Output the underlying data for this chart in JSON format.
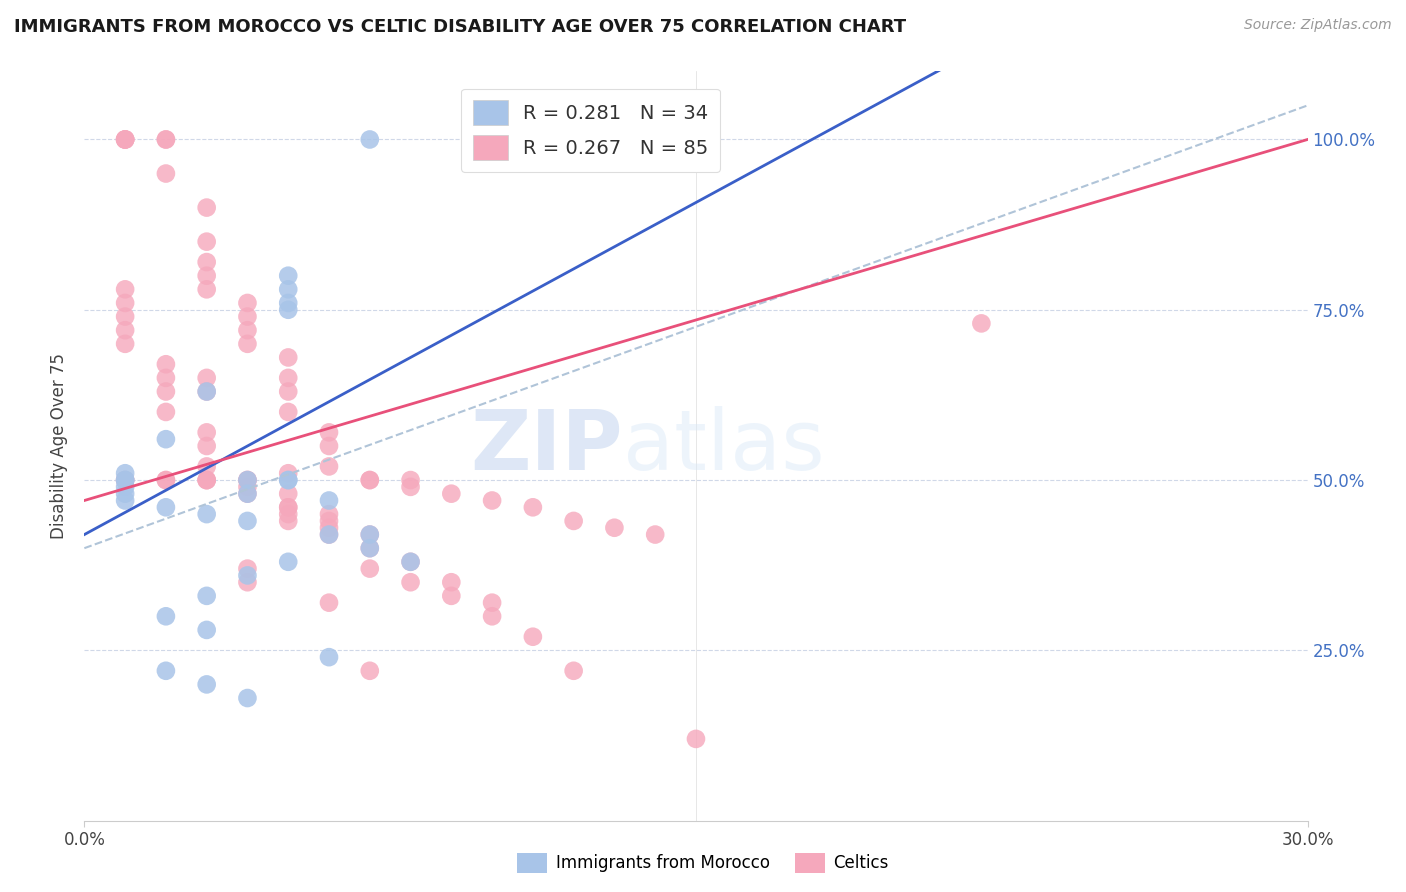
{
  "title": "IMMIGRANTS FROM MOROCCO VS CELTIC DISABILITY AGE OVER 75 CORRELATION CHART",
  "source": "Source: ZipAtlas.com",
  "ylabel": "Disability Age Over 75",
  "blue_color": "#a8c4e8",
  "pink_color": "#f5a8bc",
  "blue_line_color": "#3a5fc8",
  "pink_line_color": "#e8507a",
  "dashed_line_color": "#b0c4d8",
  "watermark_zip": "ZIP",
  "watermark_atlas": "atlas",
  "legend_blue_text": "R = 0.281   N = 34",
  "legend_pink_text": "R = 0.267   N = 85",
  "blue_scatter_x": [
    0.1,
    0.5,
    0.5,
    0.7,
    0.5,
    0.5,
    0.3,
    0.2,
    0.1,
    0.1,
    0.1,
    0.1,
    0.1,
    0.2,
    0.3,
    0.4,
    0.6,
    0.7,
    0.5,
    0.4,
    0.3,
    0.2,
    0.3,
    0.5,
    0.4,
    0.4,
    0.6,
    0.7,
    0.8,
    0.6,
    0.2,
    0.3,
    0.4,
    0.5
  ],
  "blue_scatter_y": [
    0.5,
    0.8,
    0.75,
    1.0,
    0.78,
    0.76,
    0.63,
    0.56,
    0.51,
    0.5,
    0.49,
    0.48,
    0.47,
    0.46,
    0.45,
    0.44,
    0.42,
    0.4,
    0.38,
    0.36,
    0.33,
    0.3,
    0.28,
    0.5,
    0.5,
    0.48,
    0.47,
    0.42,
    0.38,
    0.24,
    0.22,
    0.2,
    0.18,
    0.5
  ],
  "pink_scatter_x": [
    0.1,
    0.1,
    0.1,
    0.1,
    0.2,
    0.2,
    0.2,
    0.3,
    0.3,
    0.3,
    0.3,
    0.3,
    0.4,
    0.4,
    0.4,
    0.4,
    0.5,
    0.5,
    0.5,
    0.5,
    0.6,
    0.6,
    0.6,
    0.7,
    0.7,
    0.8,
    0.8,
    0.9,
    1.0,
    1.1,
    1.2,
    1.3,
    1.4,
    0.1,
    0.1,
    0.1,
    0.1,
    0.1,
    0.2,
    0.2,
    0.2,
    0.2,
    0.3,
    0.3,
    0.3,
    0.4,
    0.4,
    0.5,
    0.5,
    0.6,
    0.6,
    0.7,
    0.8,
    0.9,
    1.0,
    2.2,
    0.1,
    0.1,
    0.2,
    0.2,
    0.3,
    0.3,
    0.3,
    0.4,
    0.4,
    0.5,
    0.5,
    0.5,
    0.6,
    0.6,
    0.7,
    0.7,
    0.8,
    0.9,
    1.0,
    1.1,
    1.2,
    1.5,
    0.3,
    0.3,
    0.4,
    0.4,
    0.5,
    0.6,
    0.7
  ],
  "pink_scatter_y": [
    1.0,
    1.0,
    1.0,
    1.0,
    1.0,
    1.0,
    0.95,
    0.9,
    0.85,
    0.82,
    0.8,
    0.78,
    0.76,
    0.74,
    0.72,
    0.7,
    0.68,
    0.65,
    0.63,
    0.6,
    0.57,
    0.55,
    0.52,
    0.5,
    0.5,
    0.5,
    0.49,
    0.48,
    0.47,
    0.46,
    0.44,
    0.43,
    0.42,
    0.78,
    0.76,
    0.74,
    0.72,
    0.7,
    0.67,
    0.65,
    0.63,
    0.6,
    0.57,
    0.55,
    0.52,
    0.5,
    0.49,
    0.48,
    0.46,
    0.45,
    0.44,
    0.42,
    0.38,
    0.35,
    0.32,
    0.73,
    0.5,
    0.5,
    0.5,
    0.5,
    0.5,
    0.5,
    0.5,
    0.5,
    0.48,
    0.46,
    0.45,
    0.44,
    0.43,
    0.42,
    0.4,
    0.37,
    0.35,
    0.33,
    0.3,
    0.27,
    0.22,
    0.12,
    0.63,
    0.65,
    0.35,
    0.37,
    0.51,
    0.32,
    0.22
  ],
  "blue_line_x0": 0.0,
  "blue_line_y0": 0.42,
  "blue_line_x1": 0.8,
  "blue_line_y1": 0.68,
  "pink_line_x0": 0.0,
  "pink_line_y0": 0.47,
  "pink_line_x1": 3.0,
  "pink_line_y1": 1.0,
  "dash_line_x0": 0.0,
  "dash_line_y0": 0.4,
  "dash_line_x1": 3.0,
  "dash_line_y1": 1.05,
  "xmin": 0.0,
  "xmax": 3.0,
  "ymin": 0.0,
  "ymax": 1.1,
  "xtick_positions": [
    0.0,
    3.0
  ],
  "xtick_labels": [
    "0.0%",
    "30.0%"
  ],
  "ytick_positions": [
    0.25,
    0.5,
    0.75,
    1.0
  ],
  "ytick_labels": [
    "25.0%",
    "50.0%",
    "75.0%",
    "100.0%"
  ]
}
